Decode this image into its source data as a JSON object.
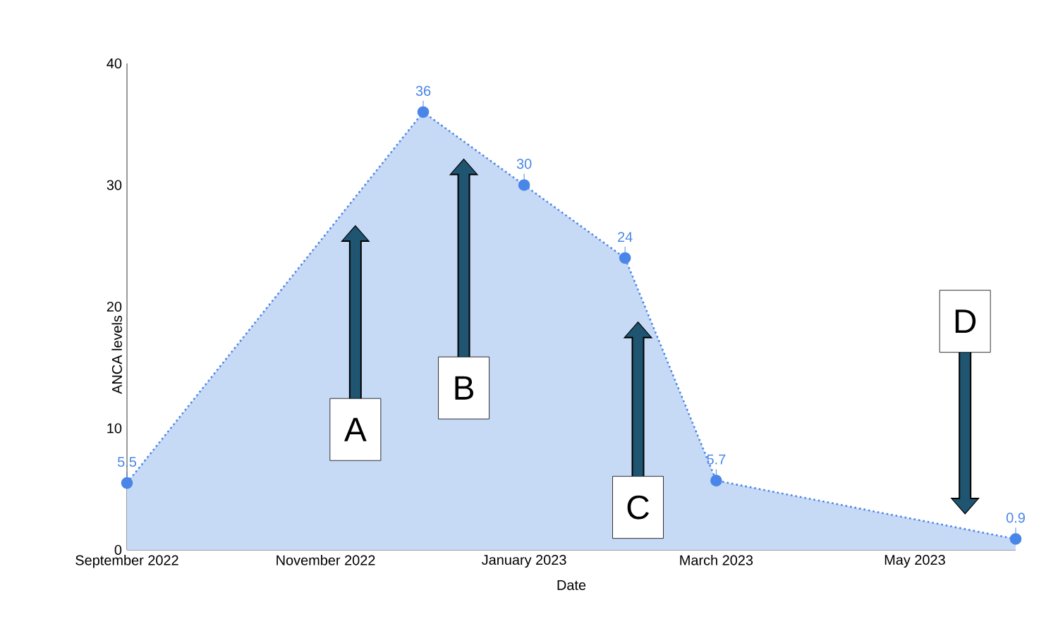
{
  "chart_data": {
    "type": "area",
    "xlabel": "Date",
    "ylabel": "ANCA levels",
    "x": [
      "2022-09-01",
      "2022-12-01",
      "2023-01-01",
      "2023-02-01",
      "2023-03-01",
      "2023-06-01"
    ],
    "series": [
      {
        "color": "#4a86e8",
        "values": [
          5.5,
          36,
          30,
          24,
          5.7,
          0.9
        ],
        "value_labels": [
          "5.5",
          "36",
          "30",
          "24",
          "5.7",
          "0.9"
        ]
      }
    ],
    "xlim": [
      "2022-09-01",
      "2023-06-01"
    ],
    "xticks": [
      {
        "value": "2022-09-01",
        "label": "September 2022"
      },
      {
        "value": "2022-11-01",
        "label": "November 2022"
      },
      {
        "value": "2023-01-01",
        "label": "January 2023"
      },
      {
        "value": "2023-03-01",
        "label": "March 2023"
      },
      {
        "value": "2023-05-01",
        "label": "May 2023"
      }
    ],
    "ylim": [
      0,
      40
    ],
    "yticks": [
      0,
      10,
      20,
      30,
      40
    ],
    "marker": "circle",
    "line_style": "dotted",
    "annotations": [
      "A",
      "B",
      "C",
      "D"
    ]
  }
}
